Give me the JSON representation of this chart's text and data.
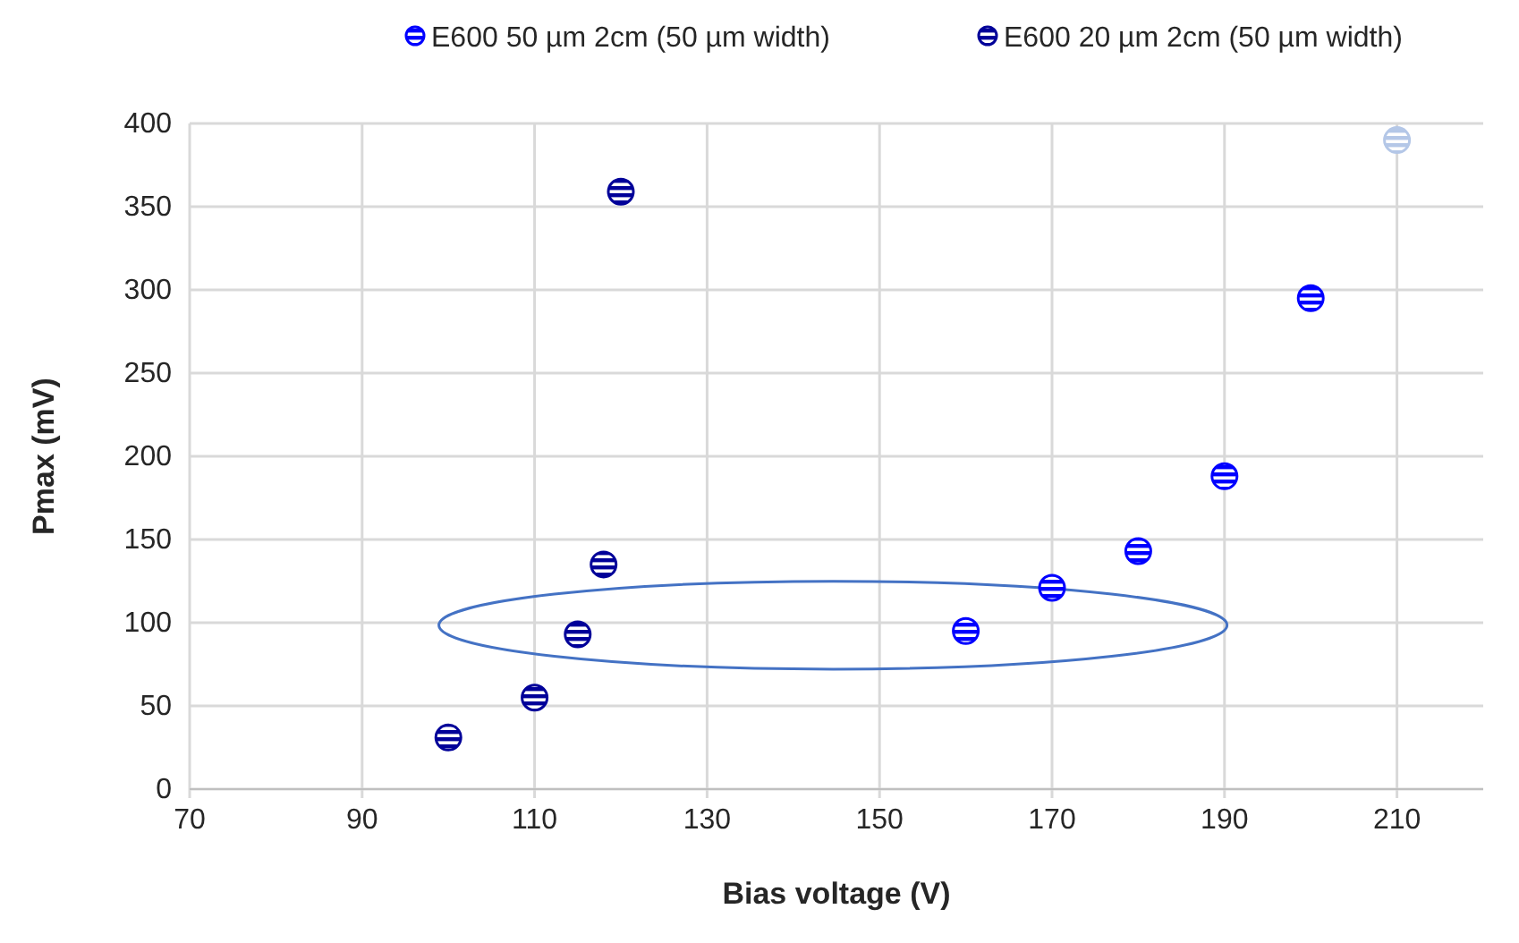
{
  "chart_data": {
    "type": "scatter",
    "xlabel": "Bias voltage (V)",
    "ylabel": "Pmax (mV)",
    "xlim": [
      70,
      220
    ],
    "xticks": [
      70,
      90,
      110,
      130,
      150,
      170,
      190,
      210
    ],
    "ylim": [
      0,
      400
    ],
    "yticks": [
      0,
      50,
      100,
      150,
      200,
      250,
      300,
      350,
      400
    ],
    "grid": true,
    "legend": "top",
    "marker": "circle",
    "series": [
      {
        "name": "E600 50 µm 2cm (50 µm width)",
        "color": "#0000ff",
        "colors": [
          "#0000ff",
          "#0000ff",
          "#0000ff",
          "#0000ff",
          "#0000ff",
          "#b4c7e7"
        ],
        "x": [
          160,
          170,
          180,
          190,
          200,
          210
        ],
        "values": [
          95,
          121,
          143,
          188,
          295,
          390
        ]
      },
      {
        "name": "E600 20 µm 2cm (50 µm width)",
        "color": "#000099",
        "x": [
          100,
          110,
          115,
          118,
          120
        ],
        "values": [
          31,
          55,
          93,
          135,
          359
        ]
      }
    ]
  }
}
